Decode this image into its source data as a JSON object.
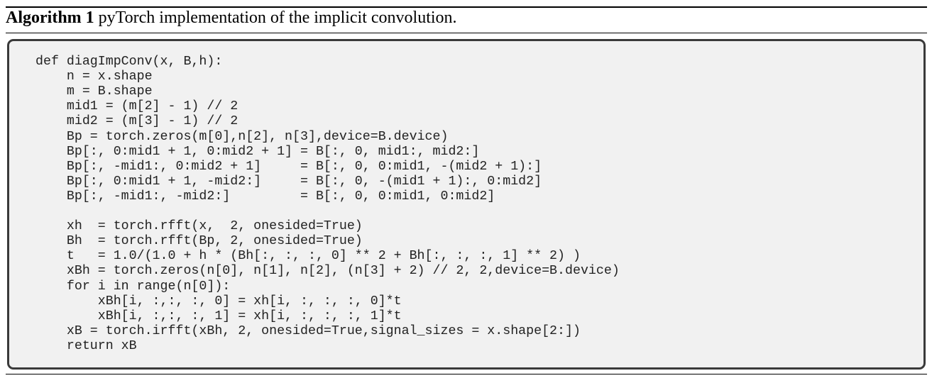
{
  "algorithm": {
    "label": "Algorithm 1",
    "title": "pyTorch implementation of the implicit convolution.",
    "code_blocks": [
      [
        "def diagImpConv(x, B,h):",
        "    n = x.shape",
        "    m = B.shape",
        "    mid1 = (m[2] - 1) // 2",
        "    mid2 = (m[3] - 1) // 2",
        "    Bp = torch.zeros(m[0],n[2], n[3],device=B.device)",
        "    Bp[:, 0:mid1 + 1, 0:mid2 + 1] = B[:, 0, mid1:, mid2:]",
        "    Bp[:, -mid1:, 0:mid2 + 1]     = B[:, 0, 0:mid1, -(mid2 + 1):]",
        "    Bp[:, 0:mid1 + 1, -mid2:]     = B[:, 0, -(mid1 + 1):, 0:mid2]",
        "    Bp[:, -mid1:, -mid2:]         = B[:, 0, 0:mid1, 0:mid2]"
      ],
      [
        "    xh  = torch.rfft(x,  2, onesided=True)",
        "    Bh  = torch.rfft(Bp, 2, onesided=True)",
        "    t   = 1.0/(1.0 + h * (Bh[:, :, :, 0] ** 2 + Bh[:, :, :, 1] ** 2) )",
        "    xBh = torch.zeros(n[0], n[1], n[2], (n[3] + 2) // 2, 2,device=B.device)",
        "    for i in range(n[0]):",
        "        xBh[i, :,:, :, 0] = xh[i, :, :, :, 0]*t",
        "        xBh[i, :,:, :, 1] = xh[i, :, :, :, 1]*t",
        "    xB = torch.irfft(xBh, 2, onesided=True,signal_sizes = x.shape[2:])",
        "    return xB"
      ]
    ]
  }
}
